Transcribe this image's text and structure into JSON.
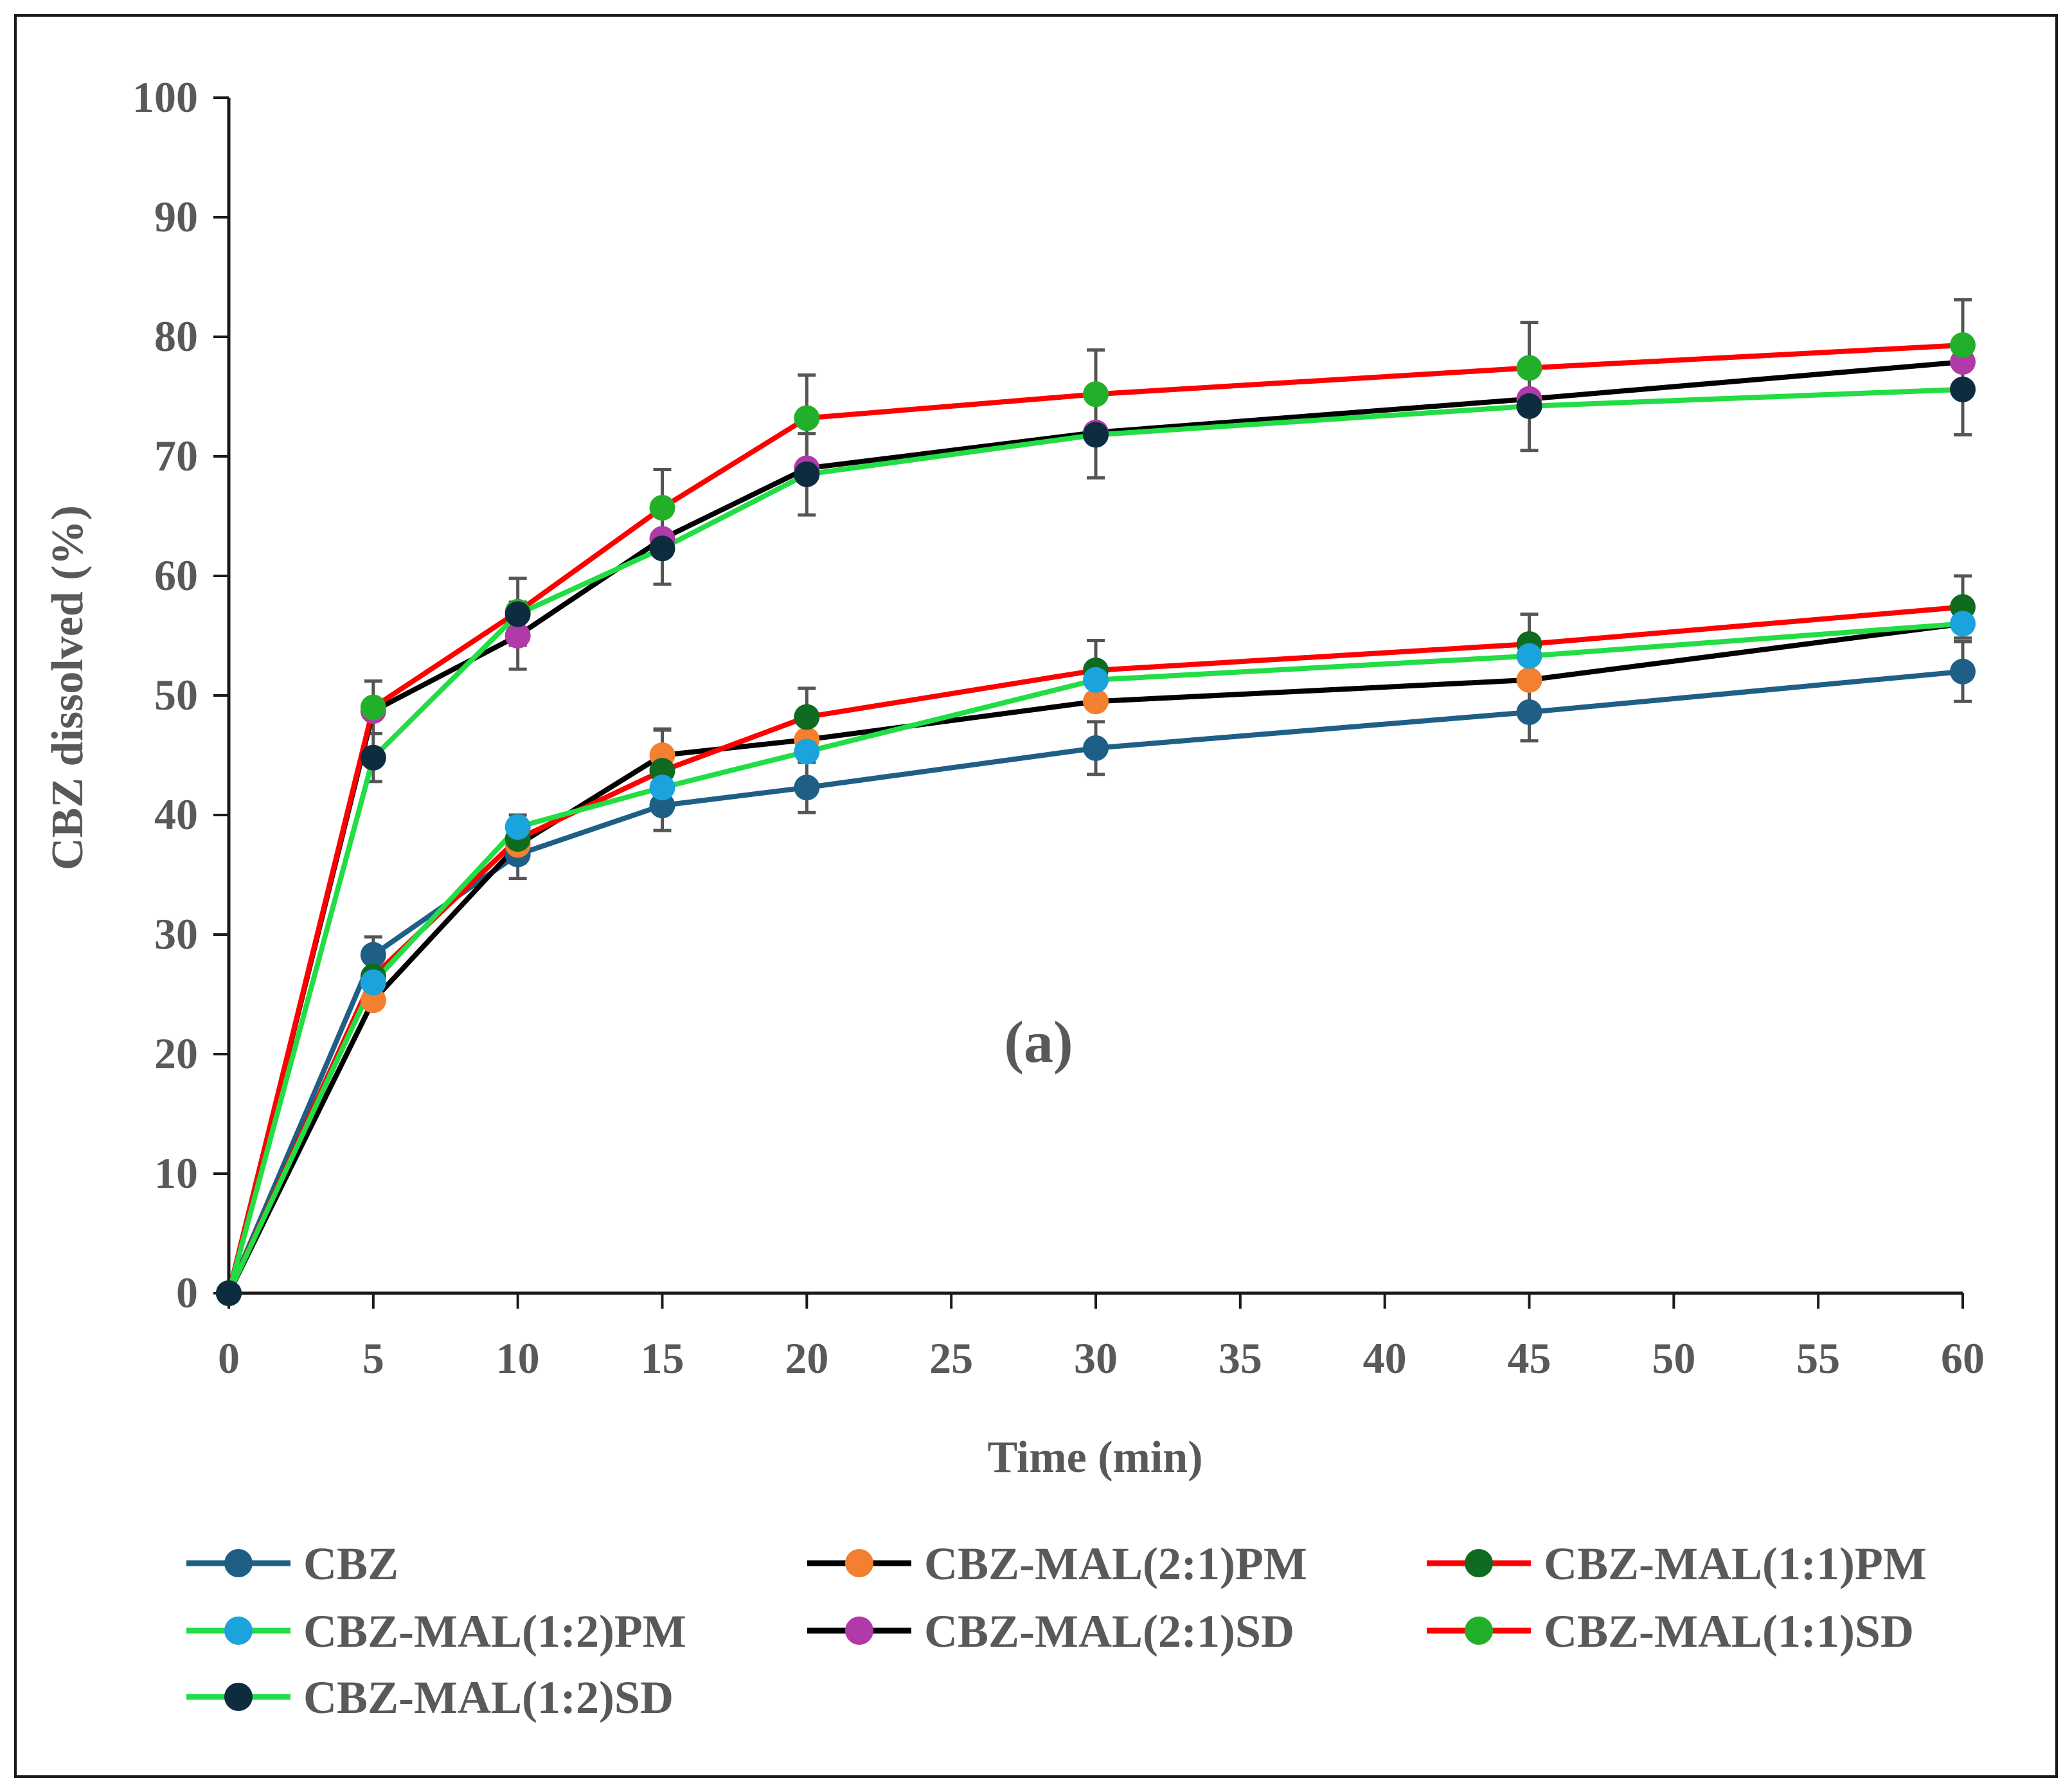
{
  "chart_data": {
    "type": "line",
    "title": "",
    "xlabel": "Time (min)",
    "ylabel": "CBZ  dissolved (%)",
    "xlim": [
      0,
      60
    ],
    "ylim": [
      0,
      100
    ],
    "x_ticks": [
      0,
      5,
      10,
      15,
      20,
      25,
      30,
      35,
      40,
      45,
      50,
      55,
      60
    ],
    "y_ticks": [
      0,
      10,
      20,
      30,
      40,
      50,
      60,
      70,
      80,
      90,
      100
    ],
    "x_tick_labels": [
      "0",
      "5",
      "10",
      "15",
      "20",
      "25",
      "30",
      "35",
      "40",
      "45",
      "50",
      "55",
      "60"
    ],
    "y_tick_labels": [
      "0",
      "10",
      "20",
      "30",
      "40",
      "50",
      "60",
      "70",
      "80",
      "90",
      "100"
    ],
    "grid": false,
    "legend_position": "bottom",
    "annotation": "(a)",
    "x": [
      0,
      5,
      10,
      15,
      20,
      30,
      45,
      60
    ],
    "series": [
      {
        "name": "CBZ",
        "line_color": "#1f5f86",
        "marker_color": "#1f5f86",
        "values": [
          0,
          28.3,
          36.7,
          40.8,
          42.3,
          45.6,
          48.6,
          52.0
        ],
        "errors": [
          0,
          1.5,
          2.0,
          2.1,
          2.1,
          2.2,
          2.4,
          2.5
        ]
      },
      {
        "name": "CBZ-MAL(2:1)PM",
        "line_color": "#000000",
        "marker_color": "#f28030",
        "values": [
          0,
          24.5,
          37.5,
          45.0,
          46.3,
          49.5,
          51.3,
          56.0
        ],
        "errors": [
          0,
          0,
          0,
          2.2,
          0,
          0,
          0,
          0
        ]
      },
      {
        "name": "CBZ-MAL(1:1)PM",
        "line_color": "#ff0000",
        "marker_color": "#0f6b1f",
        "values": [
          0,
          26.5,
          38.0,
          43.7,
          48.2,
          52.1,
          54.3,
          57.4
        ],
        "errors": [
          0,
          0,
          2.0,
          3.4,
          2.4,
          2.5,
          2.5,
          2.6
        ]
      },
      {
        "name": "CBZ-MAL(1:2)PM",
        "line_color": "#22dd44",
        "marker_color": "#1aa3dc",
        "values": [
          0,
          26.0,
          39.0,
          42.3,
          45.3,
          51.3,
          53.3,
          56.0
        ],
        "errors": [
          0,
          0,
          0,
          0,
          0,
          0,
          0,
          0
        ]
      },
      {
        "name": "CBZ-MAL(2:1)SD",
        "line_color": "#000000",
        "marker_color": "#b03aa7",
        "values": [
          0,
          48.7,
          55.0,
          63.1,
          69.0,
          72.0,
          74.8,
          77.9
        ],
        "errors": [
          0,
          0,
          2.8,
          0,
          0,
          0,
          0,
          0
        ]
      },
      {
        "name": "CBZ-MAL(1:1)SD",
        "line_color": "#ff0000",
        "marker_color": "#22b02a",
        "values": [
          0,
          49.0,
          57.0,
          65.7,
          73.2,
          75.2,
          77.4,
          79.3
        ],
        "errors": [
          0,
          2.2,
          2.8,
          3.2,
          3.6,
          3.7,
          3.8,
          3.8
        ]
      },
      {
        "name": "CBZ-MAL(1:2)SD",
        "line_color": "#22dd44",
        "marker_color": "#0d2c40",
        "values": [
          0,
          44.8,
          56.8,
          62.3,
          68.5,
          71.8,
          74.2,
          75.6
        ],
        "errors": [
          0,
          2.0,
          0,
          3.0,
          3.4,
          3.6,
          3.7,
          3.8
        ]
      }
    ]
  }
}
